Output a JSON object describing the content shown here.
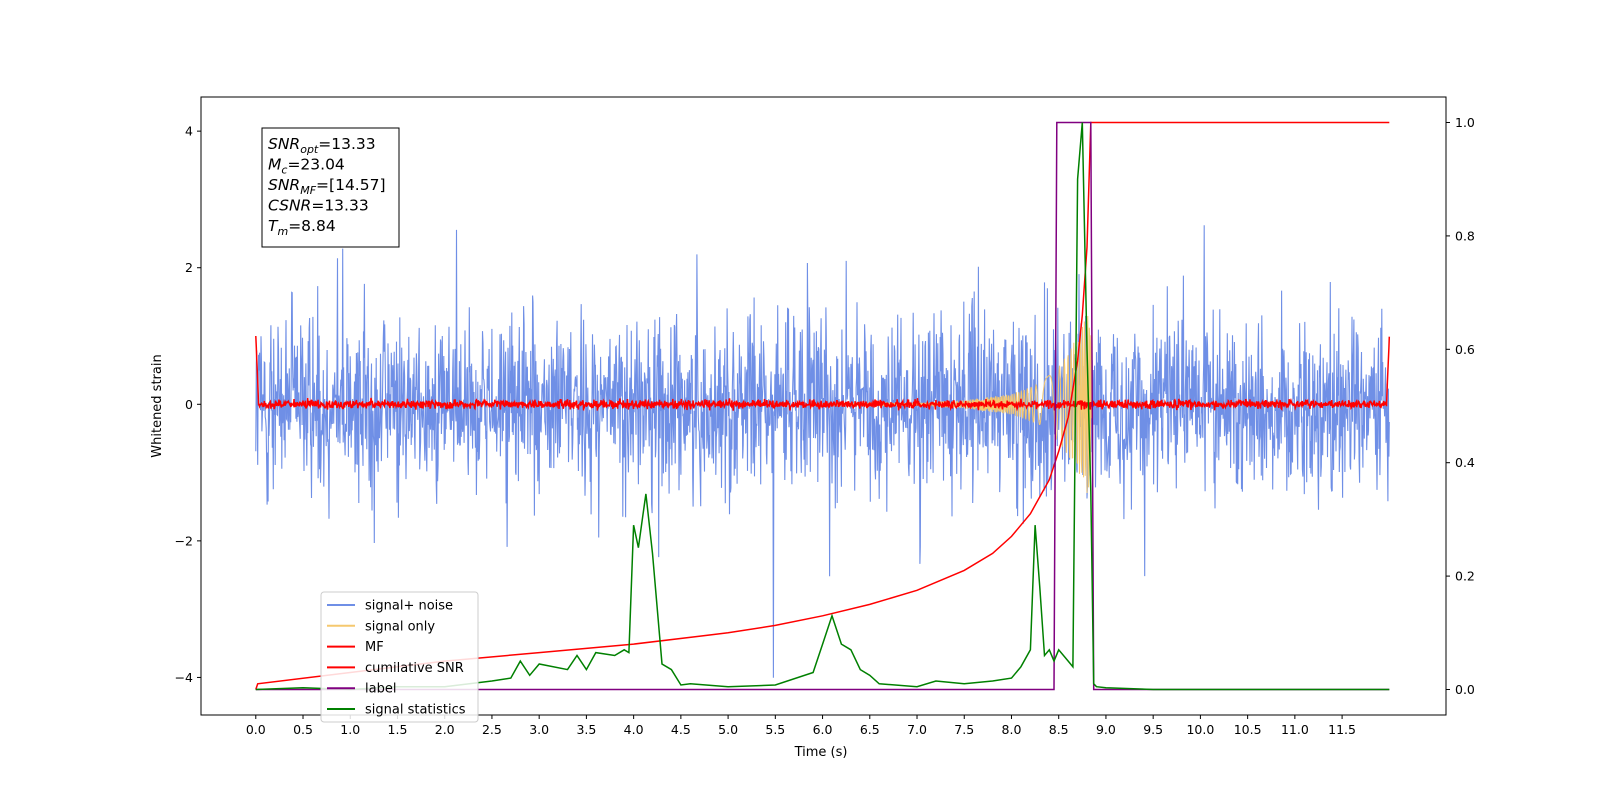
{
  "chart_data": {
    "type": "line",
    "xlabel": "Time (s)",
    "ylabel": "Whitened strain",
    "xlim": [
      -0.58,
      12.6
    ],
    "ylim": [
      -4.55,
      4.5
    ],
    "y2lim": [
      -0.045,
      1.045
    ],
    "xticks": [
      0.0,
      0.5,
      1.0,
      1.5,
      2.0,
      2.5,
      3.0,
      3.5,
      4.0,
      4.5,
      5.0,
      5.5,
      6.0,
      6.5,
      7.0,
      7.5,
      8.0,
      8.5,
      9.0,
      9.5,
      10.0,
      10.5,
      11.0,
      11.5
    ],
    "xtick_labels": [
      "0.0",
      "0.5",
      "1.0",
      "1.5",
      "2.0",
      "2.5",
      "3.0",
      "3.5",
      "4.0",
      "4.5",
      "5.0",
      "5.5",
      "6.0",
      "6.5",
      "7.0",
      "7.5",
      "8.0",
      "8.5",
      "9.0",
      "9.5",
      "10.0",
      "10.5",
      "11.0",
      "11.5"
    ],
    "yticks": [
      -4,
      -2,
      0,
      2,
      4
    ],
    "ytick_labels": [
      "−4",
      "−2",
      "0",
      "2",
      "4"
    ],
    "y2ticks": [
      0.0,
      0.2,
      0.4,
      0.6,
      0.8,
      1.0
    ],
    "y2tick_labels": [
      "0.0",
      "0.2",
      "0.4",
      "0.6",
      "0.8",
      "1.0"
    ],
    "grid": false,
    "legend_position": "bottom-left",
    "annotation": {
      "lines": [
        {
          "base": "SNR",
          "sub": "opt",
          "rest": "=13.33"
        },
        {
          "base": "M",
          "sub": "c",
          "rest": "=23.04"
        },
        {
          "base": "SNR",
          "sub": "MF",
          "rest": "=[14.57]"
        },
        {
          "base": "CSNR",
          "sub": "",
          "rest": "=13.33"
        },
        {
          "base": "T",
          "sub": "m",
          "rest": "=8.84"
        }
      ]
    },
    "series": [
      {
        "name": "signal+ noise",
        "color": "#6f8fe6",
        "axis": "left",
        "description": "noise around zero, amplitude about ±2 with spikes up to about 4"
      },
      {
        "name": "signal only",
        "color": "#f5c86f",
        "axis": "left",
        "x": [
          0.0,
          7.0,
          7.5,
          8.0,
          8.3,
          8.5,
          8.6,
          8.7,
          8.8,
          8.84,
          8.85
        ],
        "envelope": [
          0.0,
          0.02,
          0.06,
          0.15,
          0.3,
          0.55,
          0.75,
          1.0,
          1.3,
          1.45,
          0.0
        ]
      },
      {
        "name": "MF",
        "color": "#ff0000",
        "axis": "left",
        "description": "fluctuates around 0 with amplitude about 0.1, spike to 1.0 at both ends"
      },
      {
        "name": "cumilative SNR",
        "color": "#ff0000",
        "axis": "right",
        "x": [
          0.0,
          0.02,
          1.0,
          2.0,
          3.0,
          4.0,
          5.0,
          5.5,
          6.0,
          6.5,
          7.0,
          7.5,
          7.8,
          8.0,
          8.2,
          8.4,
          8.5,
          8.6,
          8.7,
          8.75,
          8.8,
          8.84,
          12.0
        ],
        "y": [
          0.0,
          0.01,
          0.03,
          0.05,
          0.065,
          0.08,
          0.1,
          0.113,
          0.13,
          0.15,
          0.175,
          0.21,
          0.24,
          0.27,
          0.31,
          0.37,
          0.42,
          0.48,
          0.58,
          0.66,
          0.78,
          1.0,
          1.0
        ]
      },
      {
        "name": "label",
        "color": "#800080",
        "axis": "right",
        "x": [
          0.0,
          8.45,
          8.48,
          8.84,
          8.87,
          12.0
        ],
        "y": [
          0.0,
          0.0,
          1.0,
          1.0,
          0.0,
          0.0
        ]
      },
      {
        "name": "signal statistics",
        "color": "#008000",
        "axis": "right",
        "x": [
          0.0,
          0.5,
          1.0,
          1.5,
          2.0,
          2.5,
          2.7,
          2.8,
          2.9,
          3.0,
          3.3,
          3.4,
          3.5,
          3.6,
          3.8,
          3.9,
          3.95,
          4.0,
          4.05,
          4.1,
          4.13,
          4.2,
          4.3,
          4.4,
          4.5,
          4.6,
          5.0,
          5.5,
          5.9,
          6.0,
          6.1,
          6.2,
          6.3,
          6.4,
          6.5,
          6.6,
          7.0,
          7.2,
          7.5,
          7.8,
          8.0,
          8.1,
          8.2,
          8.25,
          8.3,
          8.35,
          8.4,
          8.45,
          8.5,
          8.6,
          8.65,
          8.7,
          8.75,
          8.8,
          8.84,
          8.87,
          8.9,
          9.0,
          9.5,
          10.0,
          11.0,
          12.0
        ],
        "y": [
          0.0,
          0.003,
          0.0,
          0.005,
          0.005,
          0.015,
          0.02,
          0.05,
          0.025,
          0.045,
          0.035,
          0.06,
          0.035,
          0.065,
          0.06,
          0.07,
          0.065,
          0.29,
          0.25,
          0.31,
          0.345,
          0.24,
          0.045,
          0.035,
          0.008,
          0.01,
          0.005,
          0.008,
          0.03,
          0.08,
          0.13,
          0.08,
          0.07,
          0.035,
          0.025,
          0.01,
          0.005,
          0.015,
          0.01,
          0.015,
          0.02,
          0.04,
          0.07,
          0.29,
          0.18,
          0.06,
          0.07,
          0.05,
          0.07,
          0.05,
          0.04,
          0.9,
          1.0,
          0.6,
          0.35,
          0.01,
          0.005,
          0.003,
          0.0,
          0.0,
          0.0,
          0.0
        ]
      }
    ]
  }
}
